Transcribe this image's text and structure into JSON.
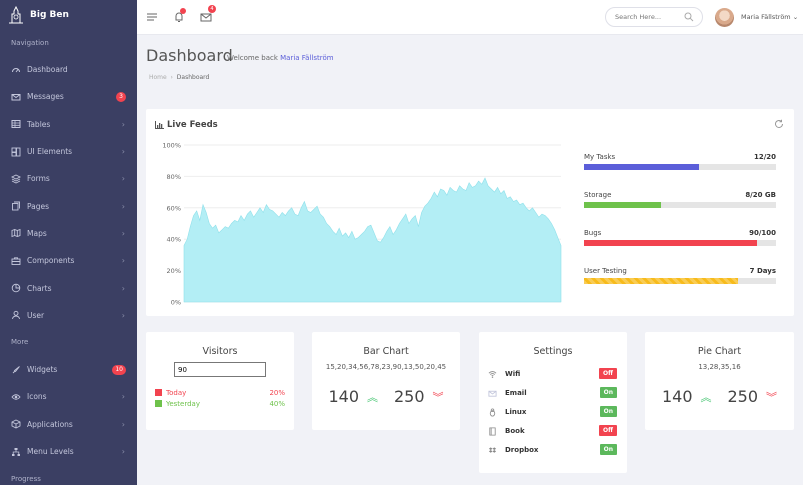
{
  "brand": {
    "name": "Big Ben"
  },
  "sidebar": {
    "section_nav": "Navigation",
    "items": [
      {
        "label": "Dashboard",
        "icon": "dashboard-icon"
      },
      {
        "label": "Messages",
        "icon": "envelope-icon",
        "badge": "3"
      },
      {
        "label": "Tables",
        "icon": "table-icon"
      },
      {
        "label": "UI Elements",
        "icon": "layers-icon"
      },
      {
        "label": "Forms",
        "icon": "stack-icon"
      },
      {
        "label": "Pages",
        "icon": "pages-icon"
      },
      {
        "label": "Maps",
        "icon": "map-icon"
      },
      {
        "label": "Components",
        "icon": "briefcase-icon"
      },
      {
        "label": "Charts",
        "icon": "pie-icon"
      },
      {
        "label": "User",
        "icon": "user-icon"
      }
    ],
    "section_more": "More",
    "more_items": [
      {
        "label": "Widgets",
        "icon": "rocket-icon",
        "badge": "10"
      },
      {
        "label": "Icons",
        "icon": "eye-icon"
      },
      {
        "label": "Applications",
        "icon": "cube-icon"
      },
      {
        "label": "Menu Levels",
        "icon": "sitemap-icon"
      }
    ],
    "section_progress": "Progress"
  },
  "topbar": {
    "bell_badge": "",
    "mail_badge": "4",
    "search_placeholder": "Search Here...",
    "user_name": "Maria Fällström"
  },
  "page": {
    "title": "Dashboard",
    "welcome_prefix": "Welcome back",
    "welcome_name": "Maria Fällström",
    "breadcrumb_home": "Home",
    "breadcrumb_current": "Dashboard"
  },
  "live_feeds": {
    "title": "Live Feeds",
    "progress": [
      {
        "label": "My Tasks",
        "value": "12/20",
        "fraction": 0.6,
        "color": "#5b5ed9"
      },
      {
        "label": "Storage",
        "value": "8/20 GB",
        "fraction": 0.4,
        "color": "#6ec24b"
      },
      {
        "label": "Bugs",
        "value": "90/100",
        "fraction": 0.9,
        "color": "#f2434f"
      },
      {
        "label": "User Testing",
        "value": "7 Days",
        "fraction": 0.8,
        "color": "#f7bb1c"
      }
    ]
  },
  "chart_data": {
    "type": "area",
    "yticks": [
      "100%",
      "80%",
      "60%",
      "40%",
      "20%",
      "0%"
    ],
    "ylim": [
      0,
      100
    ],
    "grid": true,
    "color": "#b3eef5",
    "values": [
      36,
      40,
      48,
      55,
      58,
      52,
      62,
      57,
      50,
      47,
      49,
      44,
      46,
      48,
      47,
      50,
      52,
      51,
      55,
      52,
      56,
      58,
      54,
      57,
      60,
      57,
      62,
      59,
      58,
      56,
      54,
      57,
      55,
      58,
      60,
      56,
      55,
      60,
      64,
      58,
      57,
      59,
      61,
      56,
      54,
      50,
      48,
      45,
      43,
      47,
      42,
      44,
      41,
      45,
      40,
      41,
      43,
      45,
      48,
      49,
      44,
      39,
      38,
      41,
      45,
      48,
      43,
      46,
      50,
      53,
      56,
      50,
      53,
      55,
      48,
      57,
      61,
      63,
      66,
      70,
      67,
      72,
      71,
      68,
      73,
      71,
      70,
      74,
      72,
      71,
      76,
      73,
      74,
      77,
      75,
      79,
      74,
      72,
      70,
      73,
      69,
      71,
      66,
      67,
      64,
      65,
      62,
      63,
      60,
      58,
      60,
      57,
      54,
      56,
      55,
      53,
      50,
      46,
      41,
      36
    ]
  },
  "visitors": {
    "title": "Visitors",
    "input_value": "90",
    "legend": [
      {
        "label": "Today",
        "value": "20%",
        "color": "#f2434f"
      },
      {
        "label": "Yesterday",
        "value": "40%",
        "color": "#6ec24b"
      }
    ]
  },
  "bar_chart": {
    "title": "Bar Chart",
    "data_text": "15,20,34,56,78,23,90,13,50,20,45",
    "num_up": "140",
    "num_down": "250"
  },
  "settings": {
    "title": "Settings",
    "rows": [
      {
        "label": "Wifi",
        "icon": "wifi-icon",
        "state": "Off",
        "color": "#f2434f"
      },
      {
        "label": "Email",
        "icon": "envelope-icon",
        "state": "On",
        "color": "#5cb85c"
      },
      {
        "label": "Linux",
        "icon": "linux-icon",
        "state": "On",
        "color": "#5cb85c"
      },
      {
        "label": "Book",
        "icon": "book-icon",
        "state": "Off",
        "color": "#f2434f"
      },
      {
        "label": "Dropbox",
        "icon": "dropbox-icon",
        "state": "On",
        "color": "#5cb85c"
      }
    ]
  },
  "pie_chart": {
    "title": "Pie Chart",
    "data_text": "13,28,35,16",
    "num_up": "140",
    "num_down": "250"
  }
}
